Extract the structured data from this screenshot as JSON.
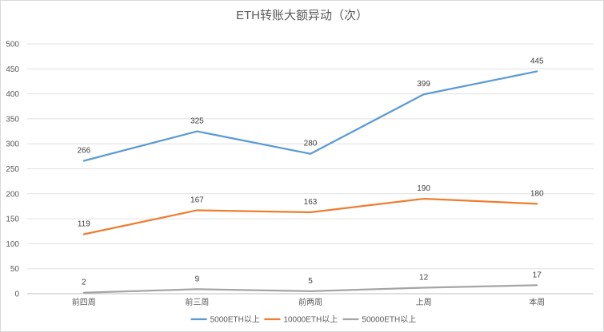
{
  "chart_data": {
    "type": "line",
    "title": "ETH转账大额异动（次）",
    "categories": [
      "前四周",
      "前三周",
      "前两周",
      "上周",
      "本周"
    ],
    "series": [
      {
        "name": "5000ETH以上",
        "values": [
          266,
          325,
          280,
          399,
          445
        ],
        "color": "#5b9bd5"
      },
      {
        "name": "10000ETH以上",
        "values": [
          119,
          167,
          163,
          190,
          180
        ],
        "color": "#ed7d31"
      },
      {
        "name": "50000ETH以上",
        "values": [
          2,
          9,
          5,
          12,
          17
        ],
        "color": "#a5a5a5"
      }
    ],
    "ylim": [
      0,
      500
    ],
    "yticks": [
      0,
      50,
      100,
      150,
      200,
      250,
      300,
      350,
      400,
      450,
      500
    ],
    "grid": true,
    "legend": "bottom"
  }
}
